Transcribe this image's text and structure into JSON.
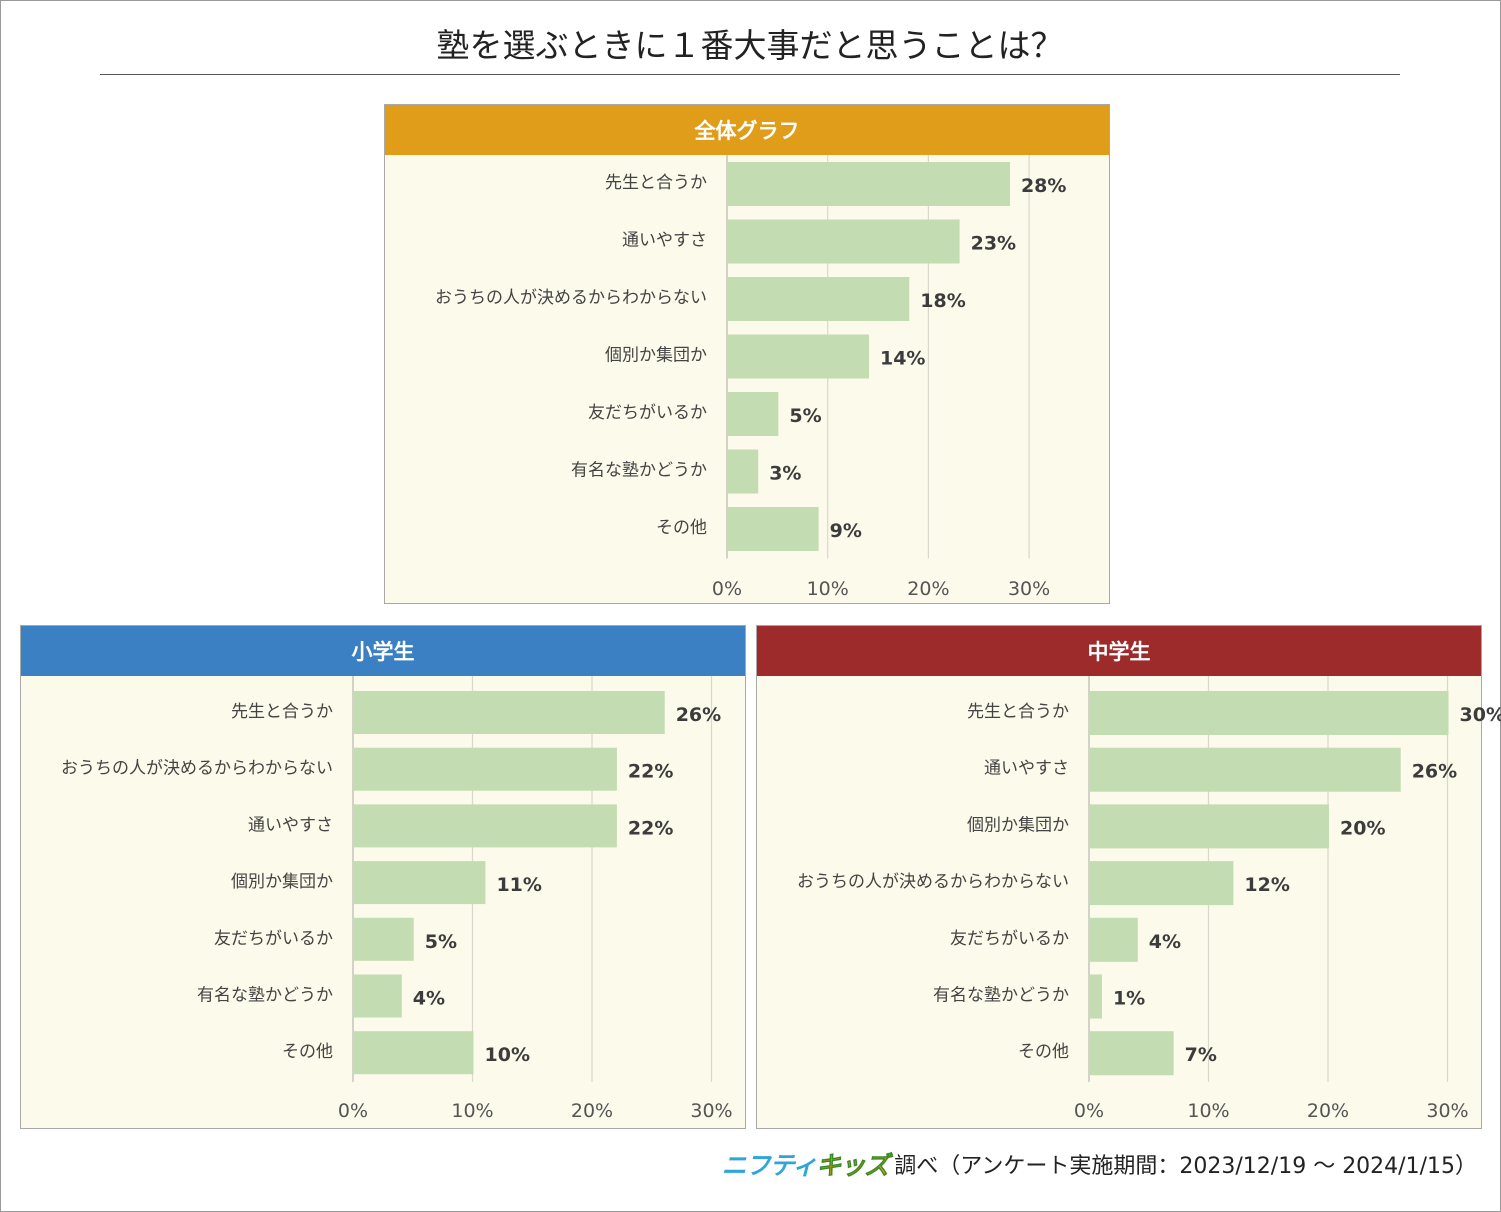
{
  "page": {
    "title": "塾を選ぶときに１番大事だと思うことは？"
  },
  "footer": {
    "brand_part1": "ニフティ",
    "brand_part2": "キッズ",
    "text": "調べ（アンケート実施期間：2023/12/19 ～ 2024/1/15）"
  },
  "colors": {
    "bar": "#c4dcb1",
    "panel_bg": "#fcfaea",
    "grid": "#d8d8cc",
    "label": "#444444",
    "value": "#3c3c3c"
  },
  "chart_data": [
    {
      "id": "overall",
      "type": "bar",
      "orientation": "horizontal",
      "title": "全体グラフ",
      "header_color": "#e09d1a",
      "categories": [
        "先生と合うか",
        "通いやすさ",
        "おうちの人が決めるからわからない",
        "個別か集団か",
        "友だちがいるか",
        "有名な塾かどうか",
        "その他"
      ],
      "values": [
        28,
        23,
        18,
        14,
        5,
        3,
        9
      ],
      "value_labels": [
        "28%",
        "23%",
        "18%",
        "14%",
        "5%",
        "3%",
        "9%"
      ],
      "xlim": [
        0,
        30
      ],
      "xticks": [
        "0%",
        "10%",
        "20%",
        "30%"
      ],
      "grid": true
    },
    {
      "id": "elementary",
      "type": "bar",
      "orientation": "horizontal",
      "title": "小学生",
      "header_color": "#3c80c4",
      "categories": [
        "先生と合うか",
        "おうちの人が決めるからわからない",
        "通いやすさ",
        "個別か集団か",
        "友だちがいるか",
        "有名な塾かどうか",
        "その他"
      ],
      "values": [
        26,
        22,
        22,
        11,
        5,
        4,
        10
      ],
      "value_labels": [
        "26%",
        "22%",
        "22%",
        "11%",
        "5%",
        "4%",
        "10%"
      ],
      "xlim": [
        0,
        30
      ],
      "xticks": [
        "0%",
        "10%",
        "20%",
        "30%"
      ],
      "grid": true
    },
    {
      "id": "junior-high",
      "type": "bar",
      "orientation": "horizontal",
      "title": "中学生",
      "header_color": "#9e2b2b",
      "categories": [
        "先生と合うか",
        "通いやすさ",
        "個別か集団か",
        "おうちの人が決めるからわからない",
        "友だちがいるか",
        "有名な塾かどうか",
        "その他"
      ],
      "values": [
        30,
        26,
        20,
        12,
        4,
        1,
        7
      ],
      "value_labels": [
        "30%",
        "26%",
        "20%",
        "12%",
        "4%",
        "1%",
        "7%"
      ],
      "xlim": [
        0,
        30
      ],
      "xticks": [
        "0%",
        "10%",
        "20%",
        "30%"
      ],
      "grid": true
    }
  ]
}
